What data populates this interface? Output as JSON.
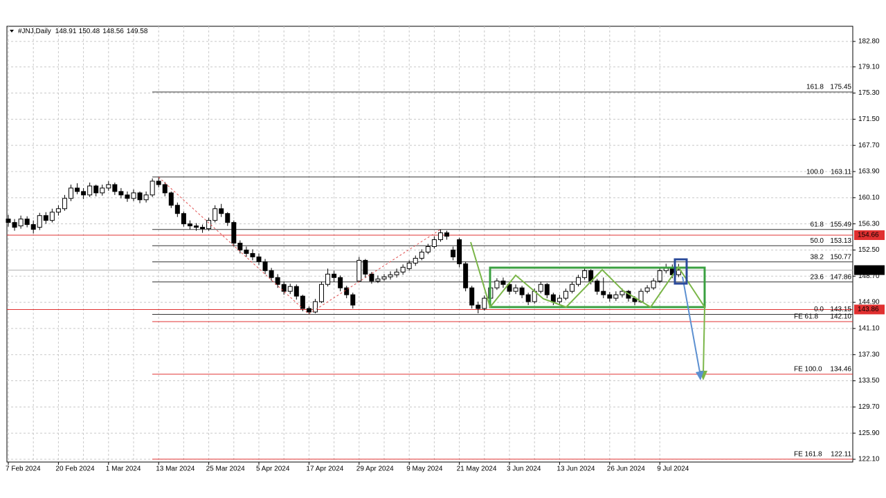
{
  "chart_data": {
    "type": "candlestick",
    "symbol": "#JNJ,Daily",
    "categories": [
      "7 Feb 2024",
      null,
      null,
      null,
      null,
      null,
      null,
      null,
      "20 Feb 2024",
      null,
      null,
      null,
      null,
      null,
      null,
      null,
      "1 Mar 2024",
      null,
      null,
      null,
      null,
      null,
      null,
      null,
      "13 Mar 2024",
      null,
      null,
      null,
      null,
      null,
      null,
      null,
      "25 Mar 2024",
      null,
      null,
      null,
      null,
      null,
      null,
      null,
      "5 Apr 2024",
      null,
      null,
      null,
      null,
      null,
      null,
      null,
      "17 Apr 2024",
      null,
      null,
      null,
      null,
      null,
      null,
      null,
      "29 Apr 2024",
      null,
      null,
      null,
      null,
      null,
      null,
      null,
      "9 May 2024",
      null,
      null,
      null,
      null,
      null,
      null,
      null,
      "21 May 2024",
      null,
      null,
      null,
      null,
      null,
      null,
      null,
      "3 Jun 2024",
      null,
      null,
      null,
      null,
      null,
      null,
      null,
      "13 Jun 2024",
      null,
      null,
      null,
      null,
      null,
      null,
      null,
      "26 Jun 2024",
      null,
      null,
      null,
      null,
      null,
      null,
      null,
      "9 Jul 2024",
      null,
      null,
      null
    ],
    "open": [
      157.0,
      156.5,
      156.0,
      157.0,
      156.2,
      155.8,
      157.5,
      156.8,
      158.0,
      158.5,
      160.0,
      161.5,
      161.0,
      160.5,
      161.8,
      160.8,
      161.5,
      162.0,
      161.0,
      160.5,
      160.0,
      160.8,
      159.8,
      160.5,
      162.5,
      162.0,
      160.8,
      159.0,
      157.8,
      156.3,
      156.0,
      155.8,
      155.6,
      156.8,
      158.5,
      157.8,
      156.5,
      153.5,
      152.5,
      152.0,
      151.5,
      150.8,
      149.5,
      148.5,
      147.5,
      146.5,
      147.2,
      145.8,
      144.0,
      143.5,
      145.0,
      147.5,
      149.0,
      148.5,
      147.0,
      146.0,
      148.0,
      151.0,
      149.0,
      148.0,
      148.3,
      148.6,
      148.9,
      149.3,
      149.8,
      150.6,
      151.3,
      152.2,
      153.0,
      154.0,
      155.0,
      152.5,
      154.0,
      150.5,
      147.0,
      144.5,
      144.0,
      145.5,
      147.0,
      148.0,
      147.5,
      146.5,
      147.0,
      146.0,
      145.0,
      146.5,
      147.5,
      146.0,
      145.0,
      145.5,
      146.5,
      147.5,
      148.5,
      149.5,
      148.0,
      146.5,
      146.0,
      145.5,
      146.0,
      146.5,
      145.5,
      145.0,
      146.5,
      147.0,
      148.0,
      149.5,
      150.0,
      148.91
    ],
    "high": [
      157.6,
      157.0,
      157.5,
      157.4,
      156.8,
      157.9,
      158.0,
      158.5,
      159.0,
      160.5,
      162.0,
      162.2,
      161.5,
      162.3,
      162.0,
      162.0,
      162.5,
      162.3,
      161.5,
      161.0,
      161.3,
      161.0,
      161.0,
      162.9,
      163.11,
      162.4,
      161.0,
      159.4,
      158.1,
      156.8,
      156.4,
      156.2,
      157.2,
      159.0,
      159.2,
      158.0,
      156.8,
      153.9,
      153.0,
      152.6,
      152.0,
      151.2,
      149.9,
      149.0,
      147.9,
      147.6,
      147.5,
      146.0,
      144.3,
      145.4,
      147.9,
      149.8,
      149.5,
      148.8,
      147.3,
      146.3,
      151.5,
      151.2,
      149.3,
      148.8,
      149.0,
      149.4,
      149.8,
      150.4,
      151.0,
      151.7,
      152.6,
      153.4,
      154.5,
      155.49,
      155.3,
      153.0,
      154.3,
      150.8,
      147.3,
      145.0,
      145.9,
      147.5,
      148.4,
      148.5,
      147.8,
      147.5,
      147.3,
      146.3,
      146.9,
      147.9,
      147.7,
      146.3,
      146.0,
      146.9,
      147.9,
      148.9,
      149.9,
      149.7,
      148.3,
      148.5,
      146.4,
      146.5,
      146.9,
      146.7,
      145.8,
      146.9,
      147.4,
      148.4,
      149.9,
      150.5,
      150.4,
      150.48
    ],
    "low": [
      155.9,
      155.3,
      155.6,
      155.8,
      154.9,
      155.4,
      156.3,
      156.5,
      157.5,
      158.2,
      159.6,
      160.6,
      159.9,
      160.2,
      160.3,
      160.4,
      161.1,
      160.5,
      160.0,
      159.5,
      159.6,
      159.3,
      159.4,
      160.2,
      161.6,
      160.3,
      158.6,
      157.3,
      155.9,
      155.5,
      155.3,
      155.0,
      155.3,
      156.5,
      157.3,
      156.0,
      153.0,
      152.0,
      151.5,
      151.0,
      150.3,
      149.0,
      148.0,
      147.0,
      146.0,
      146.1,
      145.3,
      143.6,
      143.15,
      143.3,
      144.8,
      147.2,
      147.9,
      146.5,
      145.5,
      144.0,
      147.8,
      148.5,
      147.6,
      147.7,
      148.0,
      148.2,
      148.5,
      148.9,
      149.5,
      150.2,
      151.0,
      151.9,
      152.7,
      153.7,
      154.0,
      151.0,
      150.0,
      146.5,
      144.0,
      143.3,
      143.7,
      145.2,
      146.7,
      147.0,
      146.0,
      146.1,
      145.5,
      144.5,
      144.7,
      146.2,
      145.5,
      144.5,
      144.6,
      145.2,
      146.2,
      147.2,
      148.2,
      147.5,
      146.0,
      145.5,
      145.0,
      145.1,
      145.6,
      145.0,
      144.5,
      144.8,
      146.2,
      146.7,
      147.7,
      149.1,
      148.4,
      148.56
    ],
    "close": [
      156.5,
      155.8,
      157.0,
      156.2,
      155.5,
      157.5,
      156.8,
      158.0,
      158.5,
      160.0,
      161.5,
      161.0,
      160.5,
      161.8,
      160.8,
      161.5,
      162.0,
      161.0,
      160.5,
      160.0,
      160.8,
      159.8,
      160.5,
      162.5,
      162.0,
      160.8,
      159.0,
      157.8,
      156.3,
      156.0,
      155.8,
      155.6,
      156.8,
      158.5,
      157.8,
      156.5,
      153.5,
      152.5,
      152.0,
      151.5,
      150.8,
      149.5,
      148.5,
      147.5,
      146.5,
      147.2,
      145.8,
      144.0,
      143.5,
      145.0,
      147.5,
      149.0,
      148.5,
      147.0,
      146.0,
      144.5,
      151.0,
      149.0,
      148.0,
      148.3,
      148.6,
      148.9,
      149.3,
      150.0,
      150.6,
      151.3,
      152.2,
      153.0,
      154.0,
      155.0,
      154.5,
      151.5,
      150.5,
      147.0,
      144.5,
      144.0,
      145.5,
      147.0,
      148.0,
      147.5,
      146.5,
      147.0,
      146.0,
      145.0,
      146.5,
      147.5,
      146.0,
      145.0,
      145.5,
      146.5,
      147.5,
      148.5,
      149.5,
      148.0,
      146.5,
      146.0,
      145.5,
      146.0,
      146.5,
      145.5,
      145.0,
      146.5,
      147.0,
      148.0,
      149.5,
      150.0,
      148.9,
      149.58
    ],
    "up_color": "#ffffff",
    "down_color": "#000000",
    "ylim": [
      121.7,
      185.0
    ],
    "yticks": [
      {
        "value": 182.8,
        "label": "182.80"
      },
      {
        "value": 179.1,
        "label": "179.10"
      },
      {
        "value": 175.3,
        "label": "175.30"
      },
      {
        "value": 171.5,
        "label": "171.50"
      },
      {
        "value": 167.7,
        "label": "167.70"
      },
      {
        "value": 163.9,
        "label": "163.90"
      },
      {
        "value": 160.1,
        "label": "160.10"
      },
      {
        "value": 156.3,
        "label": "156.30"
      },
      {
        "value": 152.5,
        "label": "152.50"
      },
      {
        "value": 148.7,
        "label": "148.70"
      },
      {
        "value": 144.9,
        "label": "144.90"
      },
      {
        "value": 141.1,
        "label": "141.10"
      },
      {
        "value": 137.3,
        "label": "137.30"
      },
      {
        "value": 133.5,
        "label": "133.50"
      },
      {
        "value": 129.7,
        "label": "129.70"
      },
      {
        "value": 125.9,
        "label": "125.90"
      },
      {
        "value": 122.1,
        "label": "122.10"
      }
    ],
    "grid": true,
    "fib_color": "#333333",
    "fib_levels": [
      {
        "name": "161.8",
        "value": 175.45
      },
      {
        "name": "100.0",
        "value": 163.11
      },
      {
        "name": "61.8",
        "value": 155.49
      },
      {
        "name": "50.0",
        "value": 153.13
      },
      {
        "name": "38.2",
        "value": 150.77
      },
      {
        "name": "23.6",
        "value": 147.86
      },
      {
        "name": "0.0",
        "value": 143.15
      }
    ],
    "fe_color": "#e03030",
    "fe_levels": [
      {
        "name": "FE 61.8",
        "value": {
          "value": 142.1,
          "label": "142.10"
        }
      },
      {
        "name": "FE 100.0",
        "value": 134.46
      },
      {
        "name": "FE 161.8",
        "value": 122.11
      }
    ],
    "hline_color": "#e03030",
    "hlines": [
      154.66,
      143.86
    ]
  }
}
